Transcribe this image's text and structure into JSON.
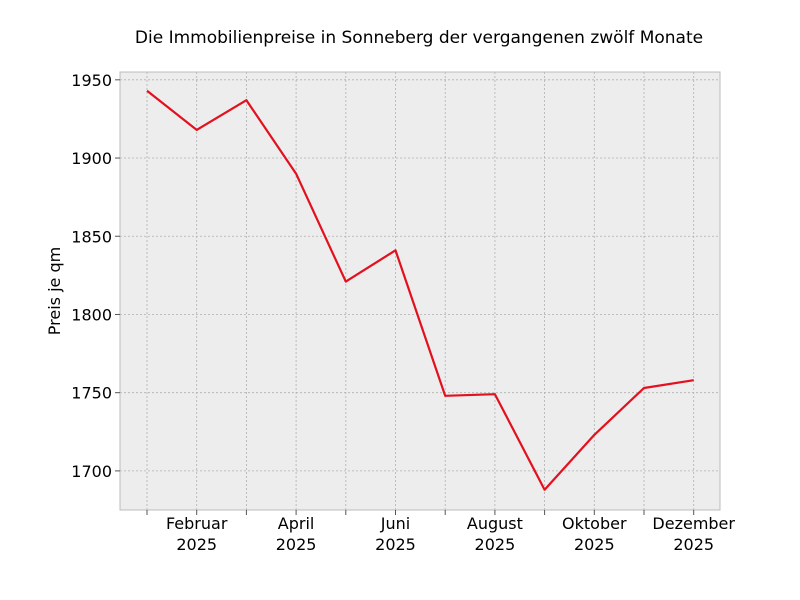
{
  "chart_data": {
    "type": "line",
    "title": "Die Immobilienpreise in Sonneberg der vergangenen zwölf Monate",
    "xlabel": "",
    "ylabel": "Preis je qm",
    "x": [
      "2025-01",
      "2025-02",
      "2025-03",
      "2025-04",
      "2025-05",
      "2025-06",
      "2025-07",
      "2025-08",
      "2025-09",
      "2025-10",
      "2025-11",
      "2025-12"
    ],
    "x_tick_labels": [
      {
        "month": "2025-02",
        "line1": "Februar",
        "line2": "2025"
      },
      {
        "month": "2025-04",
        "line1": "April",
        "line2": "2025"
      },
      {
        "month": "2025-06",
        "line1": "Juni",
        "line2": "2025"
      },
      {
        "month": "2025-08",
        "line1": "August",
        "line2": "2025"
      },
      {
        "month": "2025-10",
        "line1": "Oktober",
        "line2": "2025"
      },
      {
        "month": "2025-12",
        "line1": "Dezember",
        "line2": "2025"
      }
    ],
    "series": [
      {
        "values": [
          1943,
          1918,
          1937,
          1890,
          1821,
          1841,
          1748,
          1749,
          1688,
          1723,
          1753,
          1758
        ],
        "color": "#e3101e"
      }
    ],
    "ylim": [
      1675,
      1955
    ],
    "y_ticks": [
      1700,
      1750,
      1800,
      1850,
      1900,
      1950
    ],
    "grid": true,
    "background": "#ededed",
    "grid_color": "#b0b0b0"
  }
}
